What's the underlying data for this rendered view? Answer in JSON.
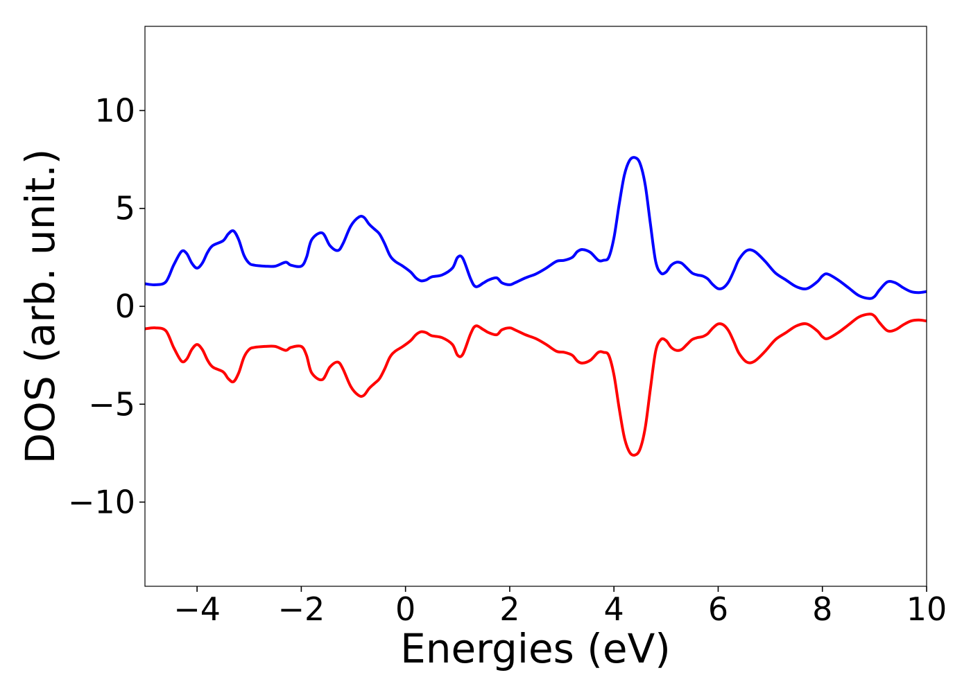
{
  "chart_data": {
    "type": "line",
    "xlabel": "Energies (eV)",
    "ylabel": "DOS (arb. unit.)",
    "xlim": [
      -5,
      10
    ],
    "ylim": [
      -14.3,
      14.3
    ],
    "grid": false,
    "xticks": [
      -4,
      -2,
      0,
      2,
      4,
      6,
      8,
      10
    ],
    "xtick_labels": [
      "−4",
      "−2",
      "0",
      "2",
      "4",
      "6",
      "8",
      "10"
    ],
    "yticks": [
      -10,
      -5,
      0,
      5,
      10
    ],
    "ytick_labels": [
      "−10",
      "−5",
      "0",
      "5",
      "10"
    ],
    "series": [
      {
        "color": "#0000ff",
        "x": [
          -5.0,
          -4.8,
          -4.6,
          -4.45,
          -4.3,
          -4.2,
          -4.1,
          -4.0,
          -3.9,
          -3.8,
          -3.7,
          -3.5,
          -3.4,
          -3.3,
          -3.2,
          -3.1,
          -3.0,
          -2.9,
          -2.7,
          -2.5,
          -2.3,
          -2.2,
          -2.0,
          -1.9,
          -1.8,
          -1.6,
          -1.45,
          -1.3,
          -1.2,
          -1.05,
          -0.9,
          -0.8,
          -0.7,
          -0.6,
          -0.5,
          -0.4,
          -0.3,
          -0.2,
          -0.05,
          0.1,
          0.2,
          0.3,
          0.4,
          0.5,
          0.7,
          0.9,
          1.0,
          1.1,
          1.25,
          1.35,
          1.5,
          1.6,
          1.75,
          1.85,
          2.0,
          2.1,
          2.3,
          2.5,
          2.7,
          2.9,
          3.05,
          3.2,
          3.3,
          3.4,
          3.55,
          3.7,
          3.8,
          3.9,
          4.0,
          4.1,
          4.2,
          4.3,
          4.4,
          4.5,
          4.6,
          4.7,
          4.8,
          4.9,
          5.0,
          5.1,
          5.2,
          5.3,
          5.4,
          5.5,
          5.6,
          5.7,
          5.8,
          5.9,
          6.0,
          6.1,
          6.2,
          6.3,
          6.4,
          6.55,
          6.7,
          6.9,
          7.1,
          7.3,
          7.5,
          7.7,
          7.9,
          8.0,
          8.1,
          8.3,
          8.5,
          8.7,
          8.9,
          9.0,
          9.1,
          9.25,
          9.4,
          9.55,
          9.7,
          9.85,
          10.0
        ],
        "y": [
          1.15,
          1.1,
          1.25,
          2.1,
          2.8,
          2.7,
          2.2,
          1.95,
          2.2,
          2.75,
          3.1,
          3.35,
          3.7,
          3.85,
          3.4,
          2.6,
          2.2,
          2.1,
          2.05,
          2.05,
          2.25,
          2.1,
          2.05,
          2.5,
          3.4,
          3.75,
          3.1,
          2.85,
          3.2,
          4.1,
          4.55,
          4.55,
          4.2,
          3.95,
          3.7,
          3.2,
          2.6,
          2.3,
          2.05,
          1.75,
          1.45,
          1.3,
          1.35,
          1.5,
          1.6,
          1.95,
          2.5,
          2.45,
          1.4,
          1.0,
          1.2,
          1.35,
          1.45,
          1.2,
          1.1,
          1.2,
          1.45,
          1.65,
          1.95,
          2.3,
          2.35,
          2.5,
          2.8,
          2.9,
          2.75,
          2.35,
          2.35,
          2.5,
          3.5,
          5.2,
          6.7,
          7.45,
          7.6,
          7.3,
          6.2,
          4.2,
          2.3,
          1.7,
          1.75,
          2.1,
          2.25,
          2.2,
          1.95,
          1.7,
          1.6,
          1.55,
          1.4,
          1.1,
          0.9,
          0.95,
          1.25,
          1.8,
          2.4,
          2.85,
          2.8,
          2.3,
          1.7,
          1.35,
          1.0,
          0.9,
          1.25,
          1.55,
          1.65,
          1.35,
          0.95,
          0.55,
          0.4,
          0.5,
          0.85,
          1.25,
          1.2,
          0.95,
          0.75,
          0.7,
          0.75
        ]
      },
      {
        "color": "#ff0000",
        "x": [
          -5.0,
          -4.8,
          -4.6,
          -4.45,
          -4.3,
          -4.2,
          -4.1,
          -4.0,
          -3.9,
          -3.8,
          -3.7,
          -3.5,
          -3.4,
          -3.3,
          -3.2,
          -3.1,
          -3.0,
          -2.9,
          -2.7,
          -2.5,
          -2.3,
          -2.2,
          -2.0,
          -1.9,
          -1.8,
          -1.6,
          -1.45,
          -1.3,
          -1.2,
          -1.05,
          -0.9,
          -0.8,
          -0.7,
          -0.6,
          -0.5,
          -0.4,
          -0.3,
          -0.2,
          -0.05,
          0.1,
          0.2,
          0.3,
          0.4,
          0.5,
          0.7,
          0.9,
          1.0,
          1.1,
          1.25,
          1.35,
          1.5,
          1.6,
          1.75,
          1.85,
          2.0,
          2.1,
          2.3,
          2.5,
          2.7,
          2.9,
          3.05,
          3.2,
          3.3,
          3.4,
          3.55,
          3.7,
          3.8,
          3.9,
          4.0,
          4.1,
          4.2,
          4.3,
          4.4,
          4.5,
          4.6,
          4.7,
          4.8,
          4.9,
          5.0,
          5.1,
          5.2,
          5.3,
          5.4,
          5.5,
          5.6,
          5.7,
          5.8,
          5.9,
          6.0,
          6.1,
          6.2,
          6.3,
          6.4,
          6.55,
          6.7,
          6.9,
          7.1,
          7.3,
          7.5,
          7.7,
          7.9,
          8.0,
          8.1,
          8.3,
          8.5,
          8.7,
          8.9,
          9.0,
          9.1,
          9.25,
          9.4,
          9.55,
          9.7,
          9.85,
          10.0
        ],
        "y": [
          -1.15,
          -1.1,
          -1.25,
          -2.1,
          -2.8,
          -2.7,
          -2.2,
          -1.95,
          -2.2,
          -2.75,
          -3.1,
          -3.35,
          -3.7,
          -3.85,
          -3.4,
          -2.6,
          -2.2,
          -2.1,
          -2.05,
          -2.05,
          -2.25,
          -2.1,
          -2.05,
          -2.5,
          -3.4,
          -3.75,
          -3.1,
          -2.85,
          -3.2,
          -4.1,
          -4.55,
          -4.55,
          -4.2,
          -3.95,
          -3.7,
          -3.2,
          -2.6,
          -2.3,
          -2.05,
          -1.75,
          -1.45,
          -1.3,
          -1.35,
          -1.5,
          -1.6,
          -1.95,
          -2.5,
          -2.45,
          -1.4,
          -1.0,
          -1.2,
          -1.35,
          -1.45,
          -1.2,
          -1.1,
          -1.2,
          -1.45,
          -1.65,
          -1.95,
          -2.3,
          -2.35,
          -2.5,
          -2.8,
          -2.9,
          -2.75,
          -2.35,
          -2.35,
          -2.5,
          -3.5,
          -5.2,
          -6.7,
          -7.45,
          -7.6,
          -7.3,
          -6.2,
          -4.2,
          -2.3,
          -1.7,
          -1.75,
          -2.1,
          -2.25,
          -2.2,
          -1.95,
          -1.7,
          -1.6,
          -1.55,
          -1.4,
          -1.1,
          -0.9,
          -0.95,
          -1.25,
          -1.8,
          -2.4,
          -2.85,
          -2.8,
          -2.3,
          -1.7,
          -1.35,
          -1.0,
          -0.9,
          -1.25,
          -1.55,
          -1.65,
          -1.35,
          -0.95,
          -0.55,
          -0.4,
          -0.5,
          -0.85,
          -1.25,
          -1.2,
          -0.95,
          -0.75,
          -0.7,
          -0.75
        ]
      }
    ]
  }
}
